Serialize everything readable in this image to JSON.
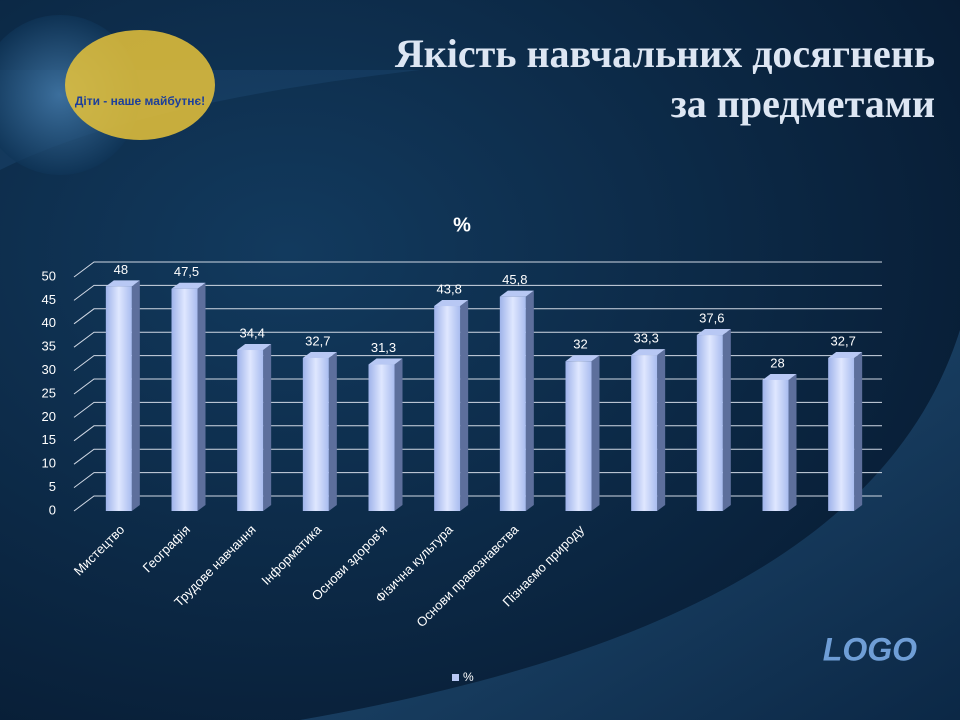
{
  "slide": {
    "title_lines": [
      "Якість навчальних досягнень",
      "за предметами"
    ],
    "logo": "LOGO",
    "badge": "Діти - наше майбутнє!"
  },
  "chart_data": {
    "type": "bar",
    "title": "%",
    "categories": [
      "Мистецтво",
      "Географія",
      "Трудове навчання",
      "Інформатика",
      "Основи здоров'я",
      "Фізична культура",
      "Основи правознавства",
      "Пізнаємо природу",
      null,
      null,
      null,
      null
    ],
    "series": [
      {
        "name": "%",
        "color": "#b8c8f4",
        "values": [
          48,
          47.5,
          34.4,
          32.7,
          31.3,
          43.8,
          45.8,
          32,
          33.3,
          37.6,
          28,
          32.7
        ],
        "value_labels": [
          "48",
          "47,5",
          "34,4",
          "32,7",
          "31,3",
          "43,8",
          "45,8",
          "32",
          "33,3",
          "37,6",
          "28",
          "32,7"
        ]
      }
    ],
    "ylim": [
      0,
      50
    ],
    "yticks": [
      0,
      5,
      10,
      15,
      20,
      25,
      30,
      35,
      40,
      45,
      50
    ],
    "grid": true,
    "legend": "bottom"
  }
}
